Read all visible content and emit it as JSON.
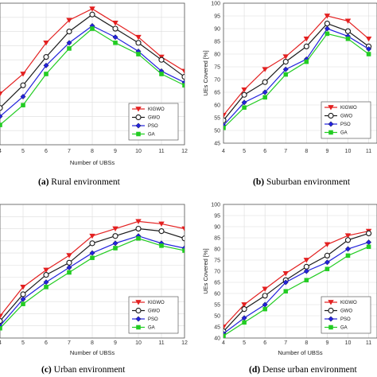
{
  "legend_labels": [
    "KIGWO",
    "GWO",
    "PSO",
    "GA"
  ],
  "series_colors": [
    "#e32020",
    "#1a1a1a",
    "#2222dd",
    "#22cc22"
  ],
  "captions": [
    {
      "tag": "(a)",
      "text": "Rural environment"
    },
    {
      "tag": "(b)",
      "text": "Suburban environment"
    },
    {
      "tag": "(c)",
      "text": "Urban environment"
    },
    {
      "tag": "(d)",
      "text": "Dense urban environment"
    }
  ],
  "chart_data": [
    {
      "type": "line",
      "xlabel": "Number of UBSs",
      "ylabel": "",
      "x": [
        4,
        5,
        6,
        7,
        8,
        9,
        10,
        11,
        12
      ],
      "xticks": [
        "4",
        "5",
        "6",
        "7",
        "8",
        "9",
        "10",
        "11",
        "12"
      ],
      "yticks": [],
      "ylim": [
        45,
        95
      ],
      "xlim": [
        4,
        12
      ],
      "grid": true,
      "legend_position": "bottom-right",
      "series": [
        {
          "name": "KIGWO",
          "values": [
            63,
            70,
            81,
            89,
            93,
            88,
            83,
            76,
            71
          ]
        },
        {
          "name": "GWO",
          "values": [
            58,
            66,
            76,
            85,
            91,
            86,
            81,
            75,
            69
          ]
        },
        {
          "name": "PSO",
          "values": [
            55,
            62,
            73,
            81,
            87,
            83,
            78,
            71,
            67
          ]
        },
        {
          "name": "GA",
          "values": [
            52,
            59,
            70,
            79,
            86,
            81,
            77,
            70,
            66
          ]
        }
      ]
    },
    {
      "type": "line",
      "xlabel": "",
      "ylabel": "UEs Covered   [%]",
      "x": [
        4,
        5,
        6,
        7,
        8,
        9,
        10,
        11
      ],
      "xticks": [
        "4",
        "5",
        "6",
        "7",
        "8",
        "9",
        "10",
        "11"
      ],
      "yticks": [
        "45",
        "50",
        "55",
        "60",
        "65",
        "70",
        "75",
        "80",
        "85",
        "90",
        "95",
        "100"
      ],
      "ylim": [
        45,
        100
      ],
      "xlim": [
        4,
        11.4
      ],
      "grid": true,
      "legend_position": "bottom-right",
      "series": [
        {
          "name": "KIGWO",
          "values": [
            56,
            66,
            74,
            79,
            86,
            95,
            93,
            86
          ]
        },
        {
          "name": "GWO",
          "values": [
            54,
            64,
            69,
            77,
            83,
            92,
            89,
            83
          ]
        },
        {
          "name": "PSO",
          "values": [
            52,
            61,
            65,
            74,
            78,
            90,
            87,
            82
          ]
        },
        {
          "name": "GA",
          "values": [
            51,
            59,
            63,
            72,
            77,
            88,
            86,
            80
          ]
        }
      ]
    },
    {
      "type": "line",
      "xlabel": "Number of UBSs",
      "ylabel": "",
      "x": [
        4,
        5,
        6,
        7,
        8,
        9,
        10,
        11,
        12
      ],
      "xticks": [
        "4",
        "5",
        "6",
        "7",
        "8",
        "9",
        "10",
        "11",
        "12"
      ],
      "yticks": [],
      "ylim": [
        45,
        100
      ],
      "xlim": [
        4,
        12
      ],
      "grid": true,
      "legend_position": "bottom-right",
      "series": [
        {
          "name": "KIGWO",
          "values": [
            54,
            66,
            73,
            79,
            87,
            90,
            93,
            92,
            90
          ]
        },
        {
          "name": "GWO",
          "values": [
            52,
            63,
            71,
            76,
            84,
            87,
            90,
            89,
            86
          ]
        },
        {
          "name": "PSO",
          "values": [
            50,
            61,
            68,
            74,
            80,
            84,
            87,
            84,
            82
          ]
        },
        {
          "name": "GA",
          "values": [
            49,
            59,
            66,
            72,
            78,
            82,
            86,
            83,
            81
          ]
        }
      ]
    },
    {
      "type": "line",
      "xlabel": "Number of UBSs",
      "ylabel": "UEs Covered   [%]",
      "x": [
        4,
        5,
        6,
        7,
        8,
        9,
        10,
        11
      ],
      "xticks": [
        "4",
        "5",
        "6",
        "7",
        "8",
        "9",
        "10",
        "11"
      ],
      "yticks": [
        "40",
        "45",
        "50",
        "55",
        "60",
        "65",
        "70",
        "75",
        "80",
        "85",
        "90",
        "95",
        "100"
      ],
      "ylim": [
        40,
        100
      ],
      "xlim": [
        4,
        11.4
      ],
      "grid": true,
      "legend_position": "bottom-right",
      "series": [
        {
          "name": "KIGWO",
          "values": [
            45,
            55,
            62,
            69,
            75,
            82,
            86,
            88
          ]
        },
        {
          "name": "GWO",
          "values": [
            43,
            53,
            59,
            66,
            72,
            77,
            84,
            87
          ]
        },
        {
          "name": "PSO",
          "values": [
            42,
            49,
            55,
            65,
            70,
            74,
            80,
            83
          ]
        },
        {
          "name": "GA",
          "values": [
            41,
            47,
            53,
            61,
            66,
            71,
            77,
            81
          ]
        }
      ]
    }
  ]
}
